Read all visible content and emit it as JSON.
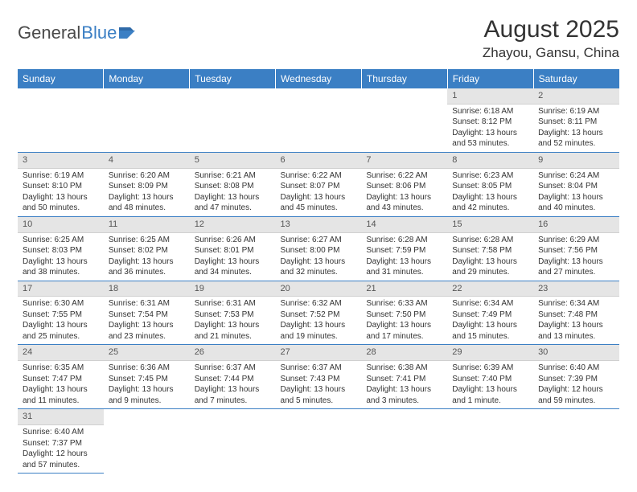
{
  "logo": {
    "text1": "General",
    "text2": "Blue"
  },
  "title": "August 2025",
  "location": "Zhayou, Gansu, China",
  "colors": {
    "header_bg": "#3b7fc4",
    "header_text": "#ffffff",
    "daynum_bg": "#e5e5e5",
    "row_divider": "#3b7fc4",
    "body_text": "#333333",
    "logo_gray": "#4a4a4a",
    "logo_blue": "#3b7fc4",
    "page_bg": "#ffffff"
  },
  "typography": {
    "title_fontsize": 30,
    "location_fontsize": 17,
    "dayheader_fontsize": 12,
    "daynum_fontsize": 11,
    "cell_fontsize": 10,
    "logo_fontsize": 22
  },
  "day_headers": [
    "Sunday",
    "Monday",
    "Tuesday",
    "Wednesday",
    "Thursday",
    "Friday",
    "Saturday"
  ],
  "weeks": [
    [
      {
        "n": "",
        "sr": "",
        "ss": "",
        "dl": ""
      },
      {
        "n": "",
        "sr": "",
        "ss": "",
        "dl": ""
      },
      {
        "n": "",
        "sr": "",
        "ss": "",
        "dl": ""
      },
      {
        "n": "",
        "sr": "",
        "ss": "",
        "dl": ""
      },
      {
        "n": "",
        "sr": "",
        "ss": "",
        "dl": ""
      },
      {
        "n": "1",
        "sr": "Sunrise: 6:18 AM",
        "ss": "Sunset: 8:12 PM",
        "dl": "Daylight: 13 hours and 53 minutes."
      },
      {
        "n": "2",
        "sr": "Sunrise: 6:19 AM",
        "ss": "Sunset: 8:11 PM",
        "dl": "Daylight: 13 hours and 52 minutes."
      }
    ],
    [
      {
        "n": "3",
        "sr": "Sunrise: 6:19 AM",
        "ss": "Sunset: 8:10 PM",
        "dl": "Daylight: 13 hours and 50 minutes."
      },
      {
        "n": "4",
        "sr": "Sunrise: 6:20 AM",
        "ss": "Sunset: 8:09 PM",
        "dl": "Daylight: 13 hours and 48 minutes."
      },
      {
        "n": "5",
        "sr": "Sunrise: 6:21 AM",
        "ss": "Sunset: 8:08 PM",
        "dl": "Daylight: 13 hours and 47 minutes."
      },
      {
        "n": "6",
        "sr": "Sunrise: 6:22 AM",
        "ss": "Sunset: 8:07 PM",
        "dl": "Daylight: 13 hours and 45 minutes."
      },
      {
        "n": "7",
        "sr": "Sunrise: 6:22 AM",
        "ss": "Sunset: 8:06 PM",
        "dl": "Daylight: 13 hours and 43 minutes."
      },
      {
        "n": "8",
        "sr": "Sunrise: 6:23 AM",
        "ss": "Sunset: 8:05 PM",
        "dl": "Daylight: 13 hours and 42 minutes."
      },
      {
        "n": "9",
        "sr": "Sunrise: 6:24 AM",
        "ss": "Sunset: 8:04 PM",
        "dl": "Daylight: 13 hours and 40 minutes."
      }
    ],
    [
      {
        "n": "10",
        "sr": "Sunrise: 6:25 AM",
        "ss": "Sunset: 8:03 PM",
        "dl": "Daylight: 13 hours and 38 minutes."
      },
      {
        "n": "11",
        "sr": "Sunrise: 6:25 AM",
        "ss": "Sunset: 8:02 PM",
        "dl": "Daylight: 13 hours and 36 minutes."
      },
      {
        "n": "12",
        "sr": "Sunrise: 6:26 AM",
        "ss": "Sunset: 8:01 PM",
        "dl": "Daylight: 13 hours and 34 minutes."
      },
      {
        "n": "13",
        "sr": "Sunrise: 6:27 AM",
        "ss": "Sunset: 8:00 PM",
        "dl": "Daylight: 13 hours and 32 minutes."
      },
      {
        "n": "14",
        "sr": "Sunrise: 6:28 AM",
        "ss": "Sunset: 7:59 PM",
        "dl": "Daylight: 13 hours and 31 minutes."
      },
      {
        "n": "15",
        "sr": "Sunrise: 6:28 AM",
        "ss": "Sunset: 7:58 PM",
        "dl": "Daylight: 13 hours and 29 minutes."
      },
      {
        "n": "16",
        "sr": "Sunrise: 6:29 AM",
        "ss": "Sunset: 7:56 PM",
        "dl": "Daylight: 13 hours and 27 minutes."
      }
    ],
    [
      {
        "n": "17",
        "sr": "Sunrise: 6:30 AM",
        "ss": "Sunset: 7:55 PM",
        "dl": "Daylight: 13 hours and 25 minutes."
      },
      {
        "n": "18",
        "sr": "Sunrise: 6:31 AM",
        "ss": "Sunset: 7:54 PM",
        "dl": "Daylight: 13 hours and 23 minutes."
      },
      {
        "n": "19",
        "sr": "Sunrise: 6:31 AM",
        "ss": "Sunset: 7:53 PM",
        "dl": "Daylight: 13 hours and 21 minutes."
      },
      {
        "n": "20",
        "sr": "Sunrise: 6:32 AM",
        "ss": "Sunset: 7:52 PM",
        "dl": "Daylight: 13 hours and 19 minutes."
      },
      {
        "n": "21",
        "sr": "Sunrise: 6:33 AM",
        "ss": "Sunset: 7:50 PM",
        "dl": "Daylight: 13 hours and 17 minutes."
      },
      {
        "n": "22",
        "sr": "Sunrise: 6:34 AM",
        "ss": "Sunset: 7:49 PM",
        "dl": "Daylight: 13 hours and 15 minutes."
      },
      {
        "n": "23",
        "sr": "Sunrise: 6:34 AM",
        "ss": "Sunset: 7:48 PM",
        "dl": "Daylight: 13 hours and 13 minutes."
      }
    ],
    [
      {
        "n": "24",
        "sr": "Sunrise: 6:35 AM",
        "ss": "Sunset: 7:47 PM",
        "dl": "Daylight: 13 hours and 11 minutes."
      },
      {
        "n": "25",
        "sr": "Sunrise: 6:36 AM",
        "ss": "Sunset: 7:45 PM",
        "dl": "Daylight: 13 hours and 9 minutes."
      },
      {
        "n": "26",
        "sr": "Sunrise: 6:37 AM",
        "ss": "Sunset: 7:44 PM",
        "dl": "Daylight: 13 hours and 7 minutes."
      },
      {
        "n": "27",
        "sr": "Sunrise: 6:37 AM",
        "ss": "Sunset: 7:43 PM",
        "dl": "Daylight: 13 hours and 5 minutes."
      },
      {
        "n": "28",
        "sr": "Sunrise: 6:38 AM",
        "ss": "Sunset: 7:41 PM",
        "dl": "Daylight: 13 hours and 3 minutes."
      },
      {
        "n": "29",
        "sr": "Sunrise: 6:39 AM",
        "ss": "Sunset: 7:40 PM",
        "dl": "Daylight: 13 hours and 1 minute."
      },
      {
        "n": "30",
        "sr": "Sunrise: 6:40 AM",
        "ss": "Sunset: 7:39 PM",
        "dl": "Daylight: 12 hours and 59 minutes."
      }
    ],
    [
      {
        "n": "31",
        "sr": "Sunrise: 6:40 AM",
        "ss": "Sunset: 7:37 PM",
        "dl": "Daylight: 12 hours and 57 minutes."
      },
      {
        "n": "",
        "sr": "",
        "ss": "",
        "dl": ""
      },
      {
        "n": "",
        "sr": "",
        "ss": "",
        "dl": ""
      },
      {
        "n": "",
        "sr": "",
        "ss": "",
        "dl": ""
      },
      {
        "n": "",
        "sr": "",
        "ss": "",
        "dl": ""
      },
      {
        "n": "",
        "sr": "",
        "ss": "",
        "dl": ""
      },
      {
        "n": "",
        "sr": "",
        "ss": "",
        "dl": ""
      }
    ]
  ]
}
